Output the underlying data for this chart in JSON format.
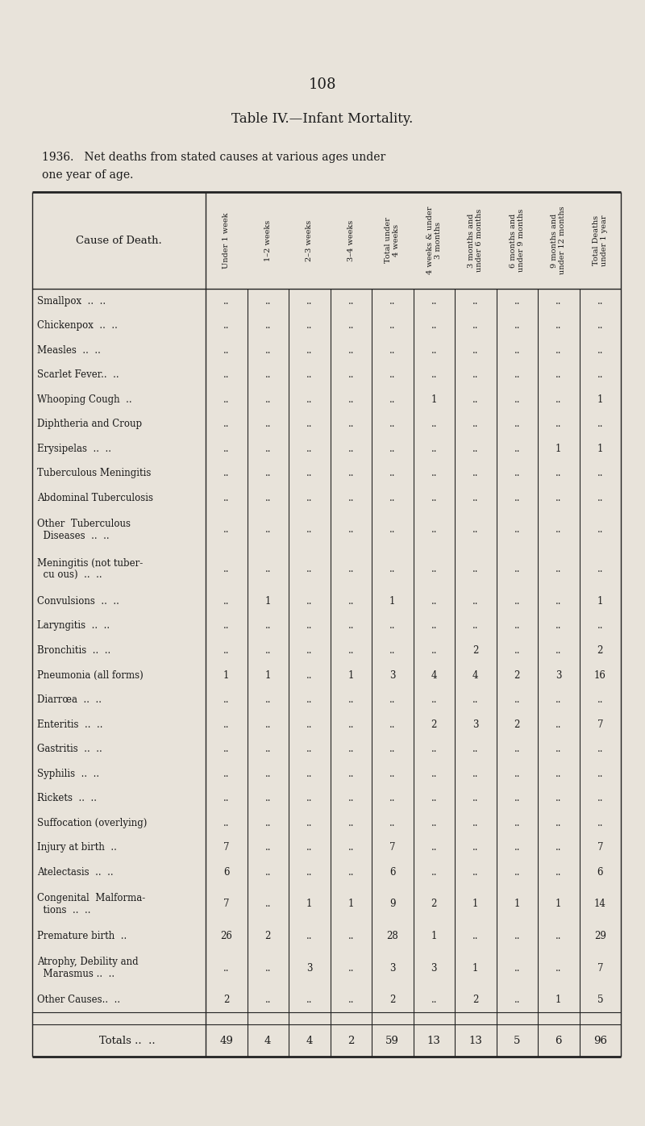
{
  "page_number": "108",
  "title": "Table IV.—Infant Mortality.",
  "subtitle": "1936.   Net deaths from stated causes at various ages under one year of age.",
  "col_headers": [
    "Under 1 week",
    "1–2 weeks",
    "2–3 weeks",
    "3–4 weeks",
    "Total under\n4 weeks",
    "4 weeks & under\n3 months",
    "3 months and\nunder 6 months",
    "6 months and\nunder 9 months",
    "9 months and\nunder 12 months",
    "Total Deaths\nunder 1 year"
  ],
  "row_label_col": "Cause of Death.",
  "rows": [
    {
      "label": [
        "Smallpox  ..  .."
      ],
      "vals": [
        "..",
        "..",
        "..",
        "..",
        "..",
        "..",
        "..",
        "..",
        "..",
        ".."
      ]
    },
    {
      "label": [
        "Chickenpox  ..  .."
      ],
      "vals": [
        "..",
        "..",
        "..",
        "..",
        "..",
        "..",
        "..",
        "..",
        "..",
        ".."
      ]
    },
    {
      "label": [
        "Measles  ..  .."
      ],
      "vals": [
        "..",
        "..",
        "..",
        "..",
        "..",
        "..",
        "..",
        "..",
        "..",
        ".."
      ]
    },
    {
      "label": [
        "Scarlet Fever..  .."
      ],
      "vals": [
        "..",
        "..",
        "..",
        "..",
        "..",
        "..",
        "..",
        "..",
        "..",
        ".."
      ]
    },
    {
      "label": [
        "Whooping Cough  .."
      ],
      "vals": [
        "..",
        "..",
        "..",
        "..",
        "..",
        "1",
        "..",
        "..",
        "..",
        "1"
      ]
    },
    {
      "label": [
        "Diphtheria and Croup"
      ],
      "vals": [
        "..",
        "..",
        "..",
        "..",
        "..",
        "..",
        "..",
        "..",
        "..",
        ".."
      ]
    },
    {
      "label": [
        "Erysipelas  ..  .."
      ],
      "vals": [
        "..",
        "..",
        "..",
        "..",
        "..",
        "..",
        "..",
        "..",
        "1",
        "1"
      ]
    },
    {
      "label": [
        "Tuberculous Meningitis"
      ],
      "vals": [
        "..",
        "..",
        "..",
        "..",
        "..",
        "..",
        "..",
        "..",
        "..",
        ".."
      ]
    },
    {
      "label": [
        "Abdominal Tuberculosis"
      ],
      "vals": [
        "..",
        "..",
        "..",
        "..",
        "..",
        "..",
        "..",
        "..",
        "..",
        ".."
      ]
    },
    {
      "label": [
        "Other  Tuberculous",
        "  Diseases  ..  .."
      ],
      "vals": [
        "..",
        "..",
        "..",
        "..",
        "..",
        "..",
        "..",
        "..",
        "..",
        ".."
      ]
    },
    {
      "label": [
        "Meningitis (not tuber-",
        "  cu ous)  ..  .."
      ],
      "vals": [
        "..",
        "..",
        "..",
        "..",
        "..",
        "..",
        "..",
        "..",
        "..",
        ".."
      ]
    },
    {
      "label": [
        "Convulsions  ..  .."
      ],
      "vals": [
        "..",
        "1",
        "..",
        "..",
        "1",
        "..",
        "..",
        "..",
        "..",
        "1"
      ]
    },
    {
      "label": [
        "Laryngitis  ..  .."
      ],
      "vals": [
        "..",
        "..",
        "..",
        "..",
        "..",
        "..",
        "..",
        "..",
        "..",
        ".."
      ]
    },
    {
      "label": [
        "Bronchitis  ..  .."
      ],
      "vals": [
        "..",
        "..",
        "..",
        "..",
        "..",
        "..",
        "2",
        "..",
        "..",
        "2"
      ]
    },
    {
      "label": [
        "Pneumonia (all forms)"
      ],
      "vals": [
        "1",
        "1",
        "..",
        "1",
        "3",
        "4",
        "4",
        "2",
        "3",
        "16"
      ]
    },
    {
      "label": [
        "Diarrœa  ..  .."
      ],
      "vals": [
        "..",
        "..",
        "..",
        "..",
        "..",
        "..",
        "..",
        "..",
        "..",
        ".."
      ]
    },
    {
      "label": [
        "Enteritis  ..  .."
      ],
      "vals": [
        "..",
        "..",
        "..",
        "..",
        "..",
        "2",
        "3",
        "2",
        "..",
        "7"
      ]
    },
    {
      "label": [
        "Gastritis  ..  .."
      ],
      "vals": [
        "..",
        "..",
        "..",
        "..",
        "..",
        "..",
        "..",
        "..",
        "..",
        ".."
      ]
    },
    {
      "label": [
        "Syphilis  ..  .."
      ],
      "vals": [
        "..",
        "..",
        "..",
        "..",
        "..",
        "..",
        "..",
        "..",
        "..",
        ".."
      ]
    },
    {
      "label": [
        "Rickets  ..  .."
      ],
      "vals": [
        "..",
        "..",
        "..",
        "..",
        "..",
        "..",
        "..",
        "..",
        "..",
        ".."
      ]
    },
    {
      "label": [
        "Suffocation (overlying)"
      ],
      "vals": [
        "..",
        "..",
        "..",
        "..",
        "..",
        "..",
        "..",
        "..",
        "..",
        ".."
      ]
    },
    {
      "label": [
        "Injury at birth  .."
      ],
      "vals": [
        "7",
        "..",
        "..",
        "..",
        "7",
        "..",
        "..",
        "..",
        "..",
        "7"
      ]
    },
    {
      "label": [
        "Atelectasis  ..  .."
      ],
      "vals": [
        "6",
        "..",
        "..",
        "..",
        "6",
        "..",
        "..",
        "..",
        "..",
        "6"
      ]
    },
    {
      "label": [
        "Congenital  Malforma-",
        "  tions  ..  .."
      ],
      "vals": [
        "7",
        "..",
        "1",
        "1",
        "9",
        "2",
        "1",
        "1",
        "1",
        "14"
      ]
    },
    {
      "label": [
        "Premature birth  .."
      ],
      "vals": [
        "26",
        "2",
        "..",
        "..",
        "28",
        "1",
        "..",
        "..",
        "..",
        "29"
      ]
    },
    {
      "label": [
        "Atrophy, Debility and",
        "  Marasmus ..  .."
      ],
      "vals": [
        "..",
        "..",
        "3",
        "..",
        "3",
        "3",
        "1",
        "..",
        "..",
        "7"
      ]
    },
    {
      "label": [
        "Other Causes..  .."
      ],
      "vals": [
        "2",
        "..",
        "..",
        "..",
        "2",
        "..",
        "2",
        "..",
        "1",
        "5"
      ]
    }
  ],
  "totals": [
    "49",
    "4",
    "4",
    "2",
    "59",
    "13",
    "13",
    "5",
    "6",
    "96"
  ],
  "bg_color": "#e8e3da",
  "text_color": "#1a1a1a",
  "line_color": "#222222"
}
